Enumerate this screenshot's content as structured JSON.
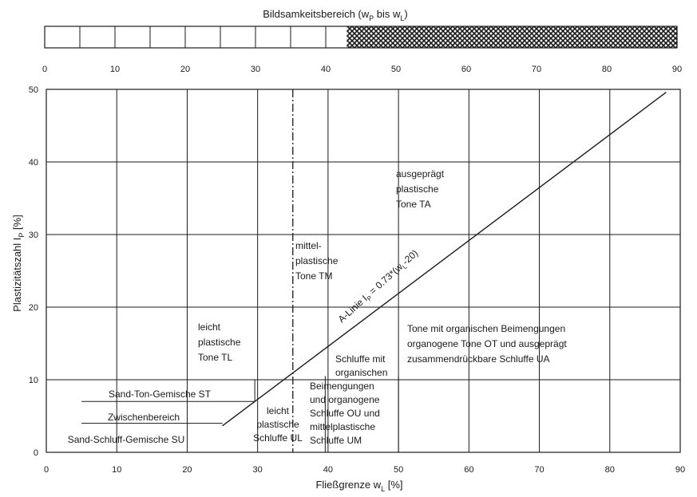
{
  "top_scale": {
    "title_prefix": "Bildsamkeitsbereich (w",
    "title_sub_p": "P",
    "title_mid": " bis w",
    "title_sub_l": "L",
    "title_suffix": ")",
    "hatch_start": 43,
    "ticks": [
      "0",
      "10",
      "20",
      "30",
      "40",
      "50",
      "60",
      "70",
      "80",
      "90"
    ]
  },
  "chart_data": {
    "type": "line",
    "x_range": [
      0,
      90
    ],
    "y_range": [
      0,
      50
    ],
    "grid": true,
    "xlabel_prefix": "Fließgrenze w",
    "xlabel_sub": "L",
    "xlabel_suffix": "  [%]",
    "ylabel_prefix": "Plastizitätszahl I",
    "ylabel_sub": "P",
    "ylabel_suffix": " [%]",
    "x_ticks": [
      "0",
      "10",
      "20",
      "30",
      "40",
      "50",
      "60",
      "70",
      "80",
      "90"
    ],
    "y_ticks": [
      "0",
      "10",
      "20",
      "30",
      "40",
      "50"
    ],
    "a_line": {
      "label": "A-Linie I",
      "label_sub": "P",
      "label_rest": " = 0.73*(w",
      "label_sub2": "L",
      "label_end": "-20)",
      "points": [
        [
          25,
          3.65
        ],
        [
          88,
          49.6
        ]
      ]
    },
    "boundary_x": 35,
    "regions": [
      {
        "name": "region-ta",
        "lines": [
          "ausgeprägt",
          "plastische",
          "Tone TA"
        ]
      },
      {
        "name": "region-tm",
        "lines": [
          "mittel-",
          "plastische",
          "Tone TM"
        ]
      },
      {
        "name": "region-tl",
        "lines": [
          "leicht",
          "plastische",
          "Tone TL"
        ]
      },
      {
        "name": "region-ot-ua",
        "lines": [
          "Tone mit organischen Beimengungen",
          "organogene Tone OT und ausgeprägt",
          "zusammendrückbare Schluffe UA"
        ]
      },
      {
        "name": "region-ou-um-a",
        "lines": [
          "Schluffe mit",
          "organischen"
        ]
      },
      {
        "name": "region-ou-um-b",
        "lines": [
          "Beimengungen",
          "und organogene",
          "Schluffe OU und",
          "mittelplastische",
          "Schluffe UM"
        ]
      },
      {
        "name": "region-ul",
        "lines": [
          "leicht",
          "plastische",
          "Schluffe UL"
        ]
      },
      {
        "name": "region-st",
        "lines": [
          "Sand-Ton-Gemische ST"
        ]
      },
      {
        "name": "region-zw",
        "lines": [
          "Zwischenbereich"
        ]
      },
      {
        "name": "region-su",
        "lines": [
          "Sand-Schluff-Gemische SU"
        ]
      }
    ]
  }
}
